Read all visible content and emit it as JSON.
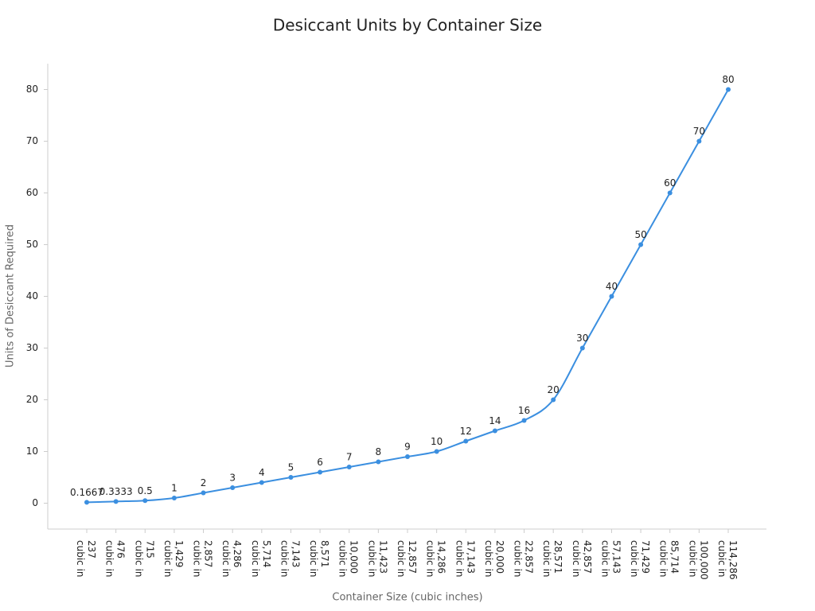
{
  "chart_data": {
    "type": "line",
    "title": "Desiccant Units by Container Size",
    "x_label": "Container Size (cubic inches)",
    "y_label": "Units of Desiccant Required",
    "categories": [
      "237 cubic in",
      "476 cubic in",
      "715 cubic in",
      "1,429 cubic in",
      "2,857 cubic in",
      "4,286 cubic in",
      "5,714 cubic in",
      "7,143 cubic in",
      "8,571 cubic in",
      "10,000 cubic in",
      "11,423 cubic in",
      "12,857 cubic in",
      "14,286 cubic in",
      "17,143 cubic in",
      "20,000 cubic in",
      "22,857 cubic in",
      "28,571 cubic in",
      "42,857 cubic in",
      "57,143 cubic in",
      "71,429 cubic in",
      "85,714 cubic in",
      "100,000 cubic in",
      "114,286 cubic in"
    ],
    "values": [
      0.1667,
      0.3333,
      0.5,
      1,
      2,
      3,
      4,
      5,
      6,
      7,
      8,
      9,
      10,
      12,
      14,
      16,
      20,
      30,
      40,
      50,
      60,
      70,
      80
    ],
    "color": "#3b8fe0",
    "ylim": [
      -5,
      85
    ],
    "yticks": [
      0,
      10,
      20,
      30,
      40,
      50,
      60,
      70,
      80
    ],
    "grid": false
  }
}
